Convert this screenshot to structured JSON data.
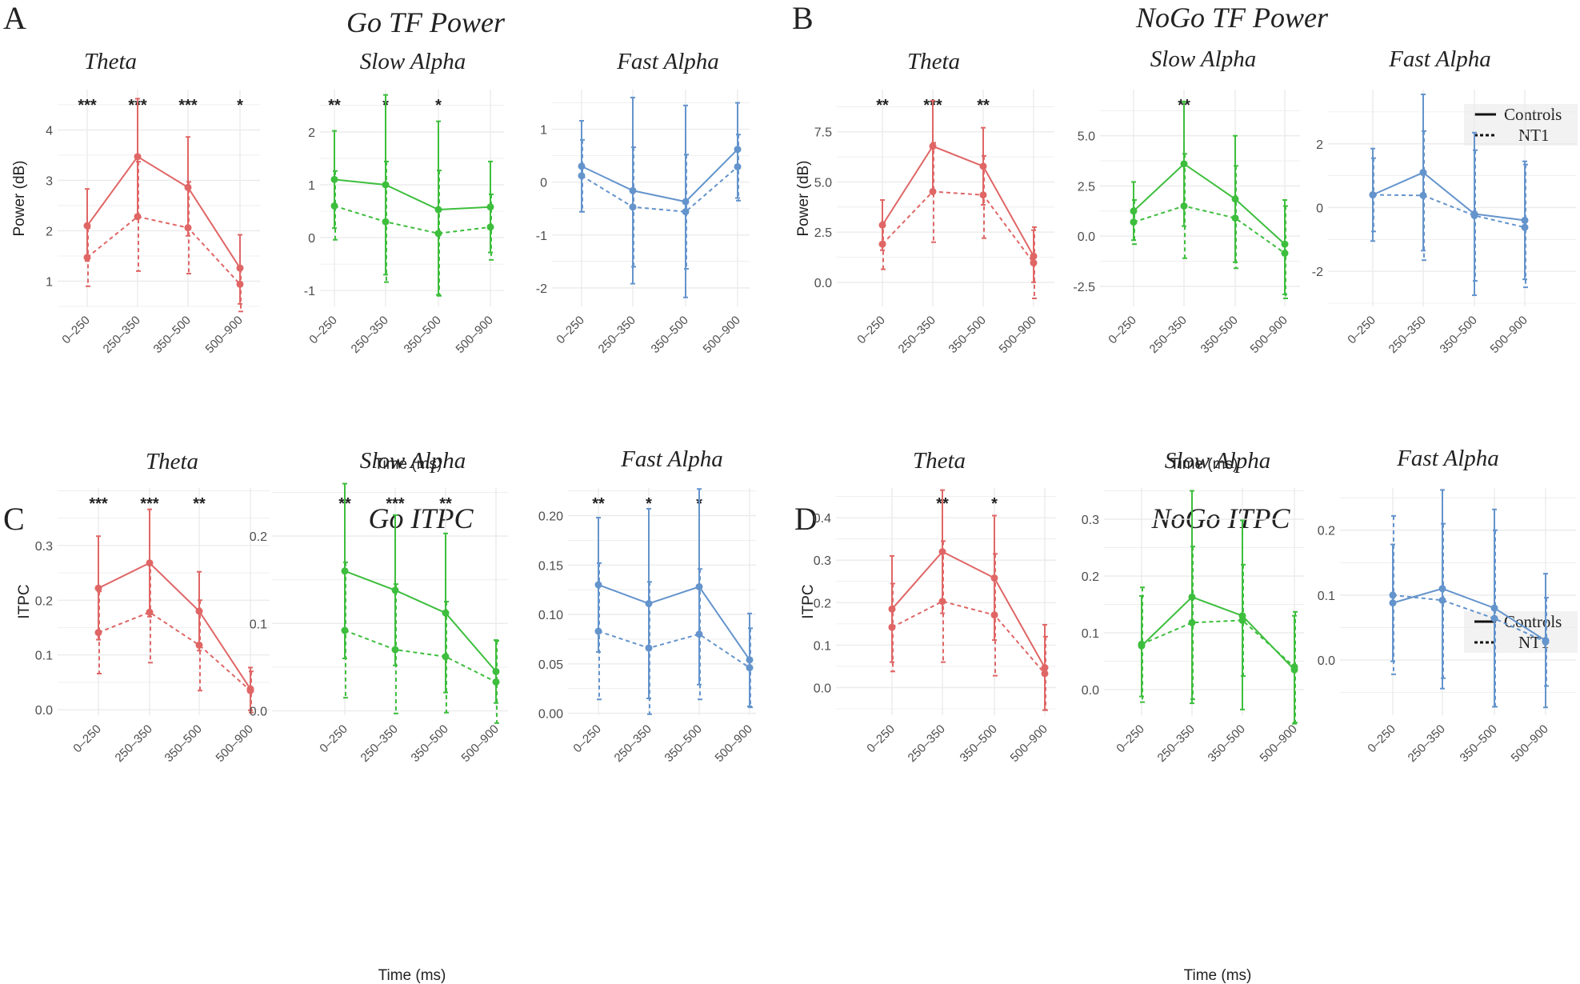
{
  "colors": {
    "theta": "#E06666",
    "slow_alpha": "#3DBE3D",
    "fast_alpha": "#6494CC",
    "grid": "#EBEBEB",
    "text": "#222222",
    "axis_text": "#4D4D4D"
  },
  "shared": {
    "x_ticks": [
      "0–250",
      "250–350",
      "350–500",
      "500–900"
    ],
    "x_axis_title": "Time (ms)",
    "legend": {
      "controls": "Controls",
      "nt1": "NT1"
    }
  },
  "chart_data": [
    {
      "panel": "A",
      "type": "line",
      "title": "Go TF Power",
      "subtitle": "Theta",
      "band": "theta",
      "ylabel": "Power (dB)",
      "ylim": [
        0.5,
        4.8
      ],
      "yticks": [
        1,
        2,
        3,
        4
      ],
      "categories": [
        "0–250",
        "250–350",
        "350–500",
        "500–900"
      ],
      "significance": [
        "***",
        "***",
        "***",
        "*"
      ],
      "series": [
        {
          "name": "Controls",
          "values": [
            2.1,
            3.47,
            2.86,
            1.26
          ],
          "upper": [
            2.83,
            4.62,
            3.86,
            1.92
          ],
          "lower": [
            1.4,
            2.32,
            1.9,
            0.55
          ]
        },
        {
          "name": "NT1",
          "values": [
            1.47,
            2.28,
            2.06,
            0.94
          ],
          "upper": [
            2.05,
            3.37,
            2.97,
            1.25
          ],
          "lower": [
            0.9,
            1.2,
            1.15,
            0.4
          ]
        }
      ]
    },
    {
      "panel": "A",
      "type": "line",
      "subtitle": "Slow Alpha",
      "band": "slow_alpha",
      "ylim": [
        -1.3,
        2.8
      ],
      "yticks": [
        -1,
        0,
        1,
        2
      ],
      "categories": [
        "0–250",
        "250–350",
        "350–500",
        "500–900"
      ],
      "significance": [
        "**",
        "*",
        "*",
        ""
      ],
      "series": [
        {
          "name": "Controls",
          "values": [
            1.1,
            1.0,
            0.53,
            0.58
          ],
          "upper": [
            2.02,
            2.7,
            2.2,
            1.44
          ],
          "lower": [
            0.18,
            -0.7,
            -1.08,
            -0.28
          ]
        },
        {
          "name": "NT1",
          "values": [
            0.6,
            0.3,
            0.08,
            0.2
          ],
          "upper": [
            1.26,
            1.44,
            1.27,
            0.82
          ],
          "lower": [
            -0.04,
            -0.84,
            -1.1,
            -0.42
          ]
        }
      ]
    },
    {
      "panel": "A",
      "type": "line",
      "subtitle": "Fast Alpha",
      "band": "fast_alpha",
      "ylim": [
        -2.35,
        1.75
      ],
      "yticks": [
        -2,
        -1,
        0,
        1
      ],
      "categories": [
        "0–250",
        "250–350",
        "350–500",
        "500–900"
      ],
      "significance": [
        "",
        "",
        "",
        ""
      ],
      "series": [
        {
          "name": "Controls",
          "values": [
            0.3,
            -0.16,
            -0.37,
            0.62
          ],
          "upper": [
            1.16,
            1.6,
            1.45,
            1.5
          ],
          "lower": [
            -0.56,
            -1.92,
            -2.18,
            -0.3
          ]
        },
        {
          "name": "NT1",
          "values": [
            0.12,
            -0.47,
            -0.56,
            0.29
          ],
          "upper": [
            0.8,
            0.66,
            0.52,
            0.9
          ],
          "lower": [
            -0.56,
            -1.6,
            -1.64,
            -0.35
          ]
        }
      ]
    },
    {
      "panel": "B",
      "type": "line",
      "title": "NoGo TF Power",
      "subtitle": "Theta",
      "band": "theta",
      "ylabel": "Power (dB)",
      "ylim": [
        -1.2,
        9.6
      ],
      "yticks": [
        0.0,
        2.5,
        5.0,
        7.5
      ],
      "categories": [
        "0–250",
        "250–350",
        "350–500",
        "500–900"
      ],
      "significance": [
        "**",
        "***",
        "**",
        ""
      ],
      "series": [
        {
          "name": "Controls",
          "values": [
            2.85,
            6.78,
            5.78,
            1.3
          ],
          "upper": [
            4.1,
            9.05,
            7.7,
            2.6
          ],
          "lower": [
            1.6,
            4.5,
            3.86,
            0.0
          ]
        },
        {
          "name": "NT1",
          "values": [
            1.9,
            4.52,
            4.35,
            0.97
          ],
          "upper": [
            3.0,
            6.95,
            6.3,
            2.75
          ],
          "lower": [
            0.65,
            2.0,
            2.2,
            -0.8
          ]
        }
      ]
    },
    {
      "panel": "B",
      "type": "line",
      "subtitle": "Slow Alpha",
      "band": "slow_alpha",
      "ylim": [
        -3.5,
        7.3
      ],
      "yticks": [
        -2.5,
        0.0,
        2.5,
        5.0
      ],
      "categories": [
        "0–250",
        "250–350",
        "350–500",
        "500–900"
      ],
      "significance": [
        "",
        "**",
        "",
        ""
      ],
      "series": [
        {
          "name": "Controls",
          "values": [
            1.25,
            3.6,
            1.85,
            -0.4
          ],
          "upper": [
            2.7,
            6.7,
            5.0,
            1.8
          ],
          "lower": [
            -0.2,
            0.5,
            -1.3,
            -2.9
          ]
        },
        {
          "name": "NT1",
          "values": [
            0.7,
            1.5,
            0.9,
            -0.85
          ],
          "upper": [
            1.8,
            4.1,
            3.5,
            1.5
          ],
          "lower": [
            -0.4,
            -1.1,
            -1.6,
            -3.1
          ]
        }
      ]
    },
    {
      "panel": "B",
      "type": "line",
      "subtitle": "Fast Alpha",
      "band": "fast_alpha",
      "ylim": [
        -3.1,
        3.7
      ],
      "yticks": [
        -2,
        0,
        2
      ],
      "categories": [
        "0–250",
        "250–350",
        "350–500",
        "500–900"
      ],
      "significance": [
        "",
        "",
        "",
        ""
      ],
      "series": [
        {
          "name": "Controls",
          "values": [
            0.4,
            1.1,
            -0.2,
            -0.4
          ],
          "upper": [
            1.85,
            3.55,
            2.35,
            1.45
          ],
          "lower": [
            -1.05,
            -1.35,
            -2.75,
            -2.25
          ]
        },
        {
          "name": "NT1",
          "values": [
            0.4,
            0.38,
            -0.25,
            -0.62
          ],
          "upper": [
            1.55,
            2.4,
            1.8,
            1.35
          ],
          "lower": [
            -0.75,
            -1.65,
            -2.3,
            -2.5
          ]
        }
      ]
    },
    {
      "panel": "C",
      "type": "line",
      "title": "Go ITPC",
      "subtitle": "Theta",
      "band": "theta",
      "ylabel": "ITPC",
      "ylim": [
        -0.01,
        0.405
      ],
      "yticks": [
        0.0,
        0.1,
        0.2,
        0.3
      ],
      "categories": [
        "0–250",
        "250–350",
        "350–500",
        "500–900"
      ],
      "significance": [
        "***",
        "***",
        "**",
        ""
      ],
      "series": [
        {
          "name": "Controls",
          "values": [
            0.222,
            0.268,
            0.18,
            0.038
          ],
          "upper": [
            0.317,
            0.366,
            0.252,
            0.077
          ],
          "lower": [
            0.128,
            0.17,
            0.108,
            -0.001
          ]
        },
        {
          "name": "NT1",
          "values": [
            0.141,
            0.178,
            0.118,
            0.035
          ],
          "upper": [
            0.216,
            0.27,
            0.2,
            0.07
          ],
          "lower": [
            0.066,
            0.086,
            0.035,
            -0.005
          ]
        }
      ]
    },
    {
      "panel": "C",
      "type": "line",
      "subtitle": "Slow Alpha",
      "band": "slow_alpha",
      "ylim": [
        -0.005,
        0.255
      ],
      "yticks": [
        0.0,
        0.1,
        0.2
      ],
      "categories": [
        "0–250",
        "250–350",
        "350–500",
        "500–900"
      ],
      "significance": [
        "**",
        "***",
        "**",
        ""
      ],
      "series": [
        {
          "name": "Controls",
          "values": [
            0.16,
            0.138,
            0.112,
            0.045
          ],
          "upper": [
            0.26,
            0.224,
            0.203,
            0.081
          ],
          "lower": [
            0.06,
            0.052,
            0.021,
            0.009
          ]
        },
        {
          "name": "NT1",
          "values": [
            0.092,
            0.07,
            0.062,
            0.033
          ],
          "upper": [
            0.17,
            0.145,
            0.125,
            0.08
          ],
          "lower": [
            0.015,
            -0.003,
            -0.002,
            -0.014
          ]
        }
      ]
    },
    {
      "panel": "C",
      "type": "line",
      "subtitle": "Fast Alpha",
      "band": "fast_alpha",
      "ylim": [
        -0.002,
        0.228
      ],
      "yticks": [
        0.0,
        0.05,
        0.1,
        0.15,
        0.2
      ],
      "categories": [
        "0–250",
        "250–350",
        "350–500",
        "500–900"
      ],
      "significance": [
        "**",
        "*",
        "*",
        ""
      ],
      "series": [
        {
          "name": "Controls",
          "values": [
            0.13,
            0.111,
            0.128,
            0.054
          ],
          "upper": [
            0.198,
            0.207,
            0.227,
            0.101
          ],
          "lower": [
            0.062,
            0.015,
            0.029,
            0.007
          ]
        },
        {
          "name": "NT1",
          "values": [
            0.083,
            0.066,
            0.08,
            0.046
          ],
          "upper": [
            0.152,
            0.133,
            0.146,
            0.086
          ],
          "lower": [
            0.014,
            -0.001,
            0.014,
            0.006
          ]
        }
      ]
    },
    {
      "panel": "D",
      "type": "line",
      "title": "NoGo ITPC",
      "subtitle": "Theta",
      "band": "theta",
      "ylabel": "ITPC",
      "ylim": [
        -0.065,
        0.47
      ],
      "yticks": [
        0.0,
        0.1,
        0.2,
        0.3,
        0.4
      ],
      "categories": [
        "0–250",
        "250–350",
        "350–500",
        "500–900"
      ],
      "significance": [
        "",
        "**",
        "*",
        ""
      ],
      "series": [
        {
          "name": "Controls",
          "values": [
            0.185,
            0.32,
            0.258,
            0.047
          ],
          "upper": [
            0.31,
            0.465,
            0.405,
            0.148
          ],
          "lower": [
            0.06,
            0.175,
            0.112,
            -0.053
          ]
        },
        {
          "name": "NT1",
          "values": [
            0.142,
            0.203,
            0.171,
            0.033
          ],
          "upper": [
            0.245,
            0.345,
            0.315,
            0.12
          ],
          "lower": [
            0.038,
            0.06,
            0.028,
            -0.053
          ]
        }
      ]
    },
    {
      "panel": "D",
      "type": "line",
      "subtitle": "Slow Alpha",
      "band": "slow_alpha",
      "ylim": [
        -0.045,
        0.355
      ],
      "yticks": [
        0.0,
        0.1,
        0.2,
        0.3
      ],
      "categories": [
        "0–250",
        "250–350",
        "350–500",
        "500–900"
      ],
      "significance": [
        "",
        "",
        "",
        ""
      ],
      "series": [
        {
          "name": "Controls",
          "values": [
            0.077,
            0.163,
            0.13,
            0.035
          ],
          "upper": [
            0.165,
            0.35,
            0.298,
            0.13
          ],
          "lower": [
            -0.012,
            -0.024,
            -0.035,
            -0.06
          ]
        },
        {
          "name": "NT1",
          "values": [
            0.08,
            0.118,
            0.122,
            0.04
          ],
          "upper": [
            0.18,
            0.252,
            0.22,
            0.137
          ],
          "lower": [
            -0.022,
            -0.017,
            0.024,
            -0.058
          ]
        }
      ]
    },
    {
      "panel": "D",
      "type": "line",
      "subtitle": "Fast Alpha",
      "band": "fast_alpha",
      "ylim": [
        -0.085,
        0.265
      ],
      "yticks": [
        0.0,
        0.1,
        0.2
      ],
      "categories": [
        "0–250",
        "250–350",
        "350–500",
        "500–900"
      ],
      "significance": [
        "",
        "",
        "",
        ""
      ],
      "series": [
        {
          "name": "Controls",
          "values": [
            0.088,
            0.11,
            0.08,
            0.03
          ],
          "upper": [
            0.178,
            0.262,
            0.232,
            0.133
          ],
          "lower": [
            -0.002,
            -0.044,
            -0.072,
            -0.073
          ]
        },
        {
          "name": "NT1",
          "values": [
            0.1,
            0.092,
            0.064,
            0.028
          ],
          "upper": [
            0.222,
            0.21,
            0.2,
            0.096
          ],
          "lower": [
            -0.022,
            -0.028,
            -0.072,
            -0.04
          ]
        }
      ]
    }
  ],
  "panel_labels": {
    "A": "A",
    "B": "B",
    "C": "C",
    "D": "D"
  },
  "panel_titles": {
    "A": "Go TF Power",
    "B": "NoGo TF Power",
    "C": "Go ITPC",
    "D": "NoGo ITPC"
  }
}
